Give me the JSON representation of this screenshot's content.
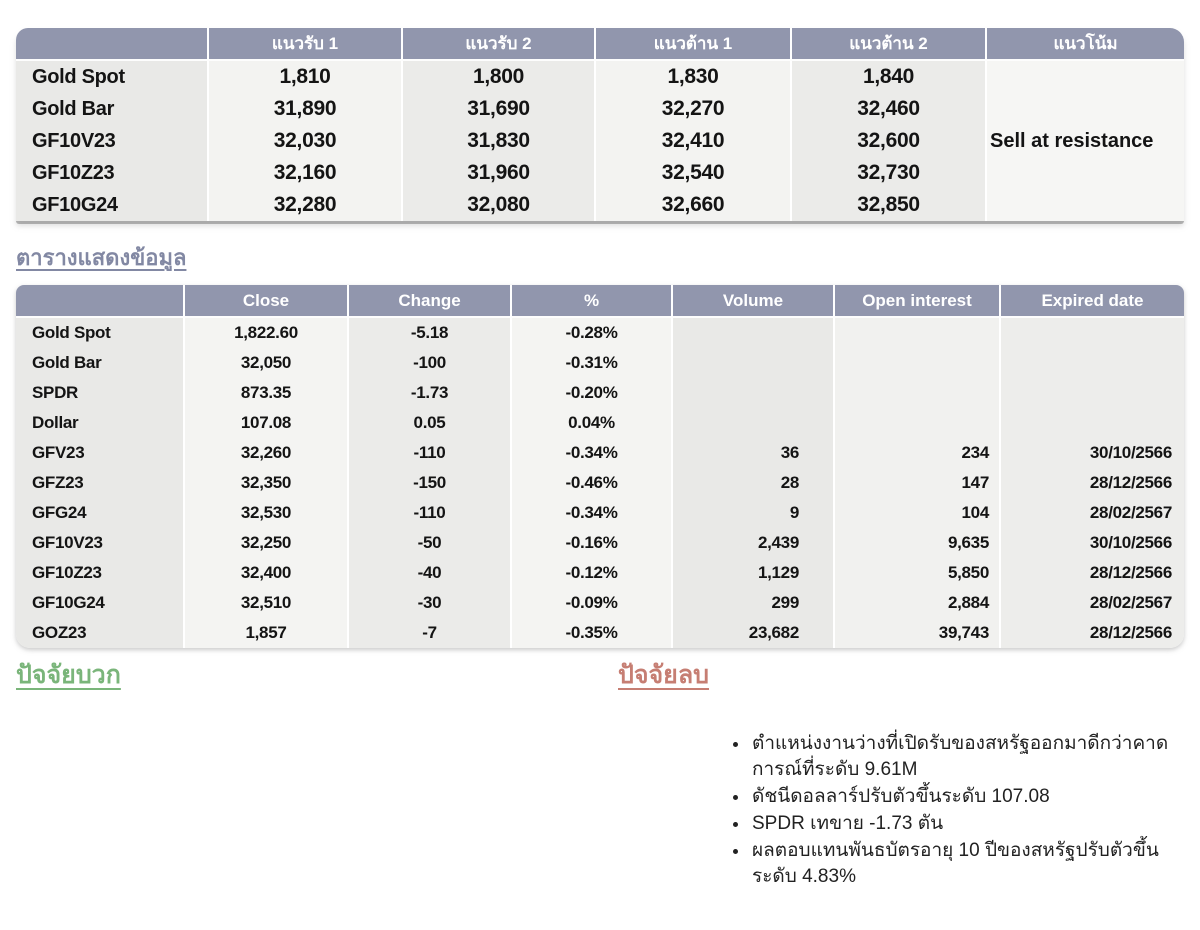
{
  "levels_table": {
    "columns": [
      "",
      "แนวรับ 1",
      "แนวรับ 2",
      "แนวต้าน 1",
      "แนวต้าน 2",
      "แนวโน้ม"
    ],
    "rows": [
      {
        "label": "Gold Spot",
        "s1": "1,810",
        "s2": "1,800",
        "r1": "1,830",
        "r2": "1,840",
        "trend": ""
      },
      {
        "label": "Gold Bar",
        "s1": "31,890",
        "s2": "31,690",
        "r1": "32,270",
        "r2": "32,460",
        "trend": ""
      },
      {
        "label": "GF10V23",
        "s1": "32,030",
        "s2": "31,830",
        "r1": "32,410",
        "r2": "32,600",
        "trend": "Sell at resistance"
      },
      {
        "label": "GF10Z23",
        "s1": "32,160",
        "s2": "31,960",
        "r1": "32,540",
        "r2": "32,730",
        "trend": ""
      },
      {
        "label": "GF10G24",
        "s1": "32,280",
        "s2": "32,080",
        "r1": "32,660",
        "r2": "32,850",
        "trend": ""
      }
    ]
  },
  "data_table": {
    "title": "ตารางแสดงข้อมูล",
    "columns": [
      "",
      "Close",
      "Change",
      "%",
      "Volume",
      "Open interest",
      "Expired date"
    ],
    "rows": [
      {
        "label": "Gold Spot",
        "close": "1,822.60",
        "change": "-5.18",
        "pct": "-0.28%",
        "volume": "",
        "oi": "",
        "expired": ""
      },
      {
        "label": "Gold Bar",
        "close": "32,050",
        "change": "-100",
        "pct": "-0.31%",
        "volume": "",
        "oi": "",
        "expired": ""
      },
      {
        "label": "SPDR",
        "close": "873.35",
        "change": "-1.73",
        "pct": "-0.20%",
        "volume": "",
        "oi": "",
        "expired": ""
      },
      {
        "label": "Dollar",
        "close": "107.08",
        "change": "0.05",
        "pct": "0.04%",
        "volume": "",
        "oi": "",
        "expired": ""
      },
      {
        "label": "GFV23",
        "close": "32,260",
        "change": "-110",
        "pct": "-0.34%",
        "volume": "36",
        "oi": "234",
        "expired": "30/10/2566"
      },
      {
        "label": "GFZ23",
        "close": "32,350",
        "change": "-150",
        "pct": "-0.46%",
        "volume": "28",
        "oi": "147",
        "expired": "28/12/2566"
      },
      {
        "label": "GFG24",
        "close": "32,530",
        "change": "-110",
        "pct": "-0.34%",
        "volume": "9",
        "oi": "104",
        "expired": "28/02/2567"
      },
      {
        "label": "GF10V23",
        "close": "32,250",
        "change": "-50",
        "pct": "-0.16%",
        "volume": "2,439",
        "oi": "9,635",
        "expired": "30/10/2566"
      },
      {
        "label": "GF10Z23",
        "close": "32,400",
        "change": "-40",
        "pct": "-0.12%",
        "volume": "1,129",
        "oi": "5,850",
        "expired": "28/12/2566"
      },
      {
        "label": "GF10G24",
        "close": "32,510",
        "change": "-30",
        "pct": "-0.09%",
        "volume": "299",
        "oi": "2,884",
        "expired": "28/02/2567"
      },
      {
        "label": "GOZ23",
        "close": "1,857",
        "change": "-7",
        "pct": "-0.35%",
        "volume": "23,682",
        "oi": "39,743",
        "expired": "28/12/2566"
      }
    ]
  },
  "factors": {
    "positive_title": "ปัจจัยบวก",
    "negative_title": "ปัจจัยลบ",
    "positive_items": [],
    "negative_items": [
      "ตำแหน่งงานว่างที่เปิดรับของสหรัฐออกมาดีกว่าคาดการณ์ที่ระดับ 9.61M",
      "ดัชนีดอลลาร์ปรับตัวขึ้นระดับ 107.08",
      "SPDR เทขาย -1.73 ตัน",
      "ผลตอบแทนพันธบัตรอายุ 10 ปีของสหรัฐปรับตัวขึ้นระดับ 4.83%"
    ]
  },
  "colors": {
    "header_bg": "#9196ad",
    "negative_value": "#dd1f1f",
    "positive_value": "#00a050",
    "section_title": "#8288a3",
    "positive_heading": "#7ab57a",
    "negative_heading": "#c67e73"
  }
}
